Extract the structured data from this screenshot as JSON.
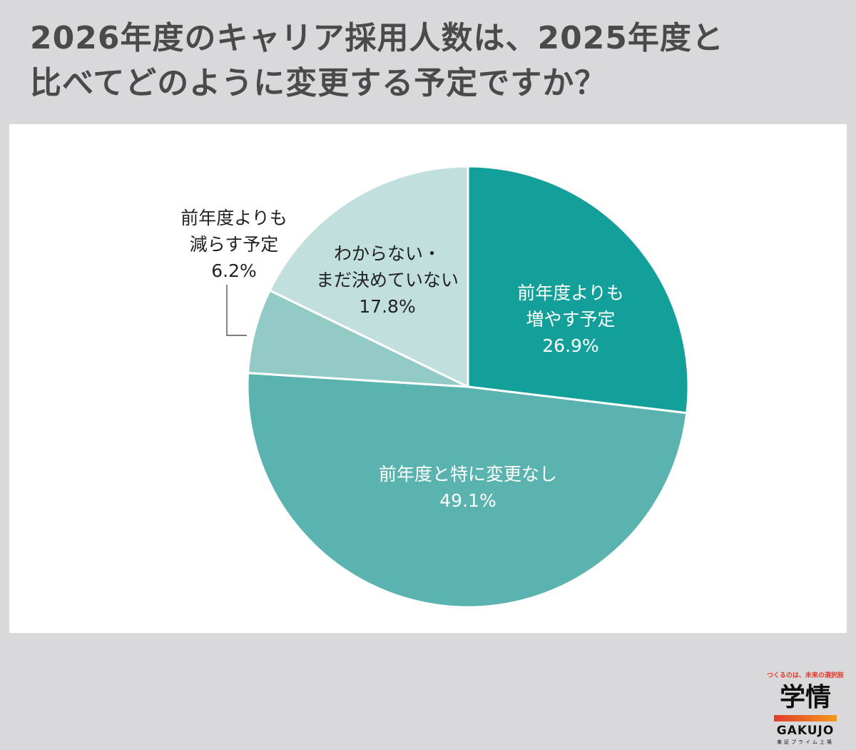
{
  "title": {
    "line1": "2026年度のキャリア採用人数は、2025年度と",
    "line2": "比べてどのように変更する予定ですか？"
  },
  "chart_data": {
    "type": "pie",
    "title": "2026年度のキャリア採用人数は、2025年度と比べてどのように変更する予定ですか？",
    "slices": [
      {
        "label_lines": [
          "前年度よりも",
          "増やす予定"
        ],
        "value": 26.9,
        "value_label": "26.9%",
        "color": "#14a09a",
        "text_color": "#ffffff"
      },
      {
        "label_lines": [
          "前年度と特に変更なし"
        ],
        "value": 49.1,
        "value_label": "49.1%",
        "color": "#5bb3b0",
        "text_color": "#ffffff"
      },
      {
        "label_lines": [
          "前年度よりも",
          "減らす予定"
        ],
        "value": 6.2,
        "value_label": "6.2%",
        "color": "#92cbc6",
        "text_color": "#222222"
      },
      {
        "label_lines": [
          "わからない・",
          "まだ決めていない"
        ],
        "value": 17.8,
        "value_label": "17.8%",
        "color": "#c1dfdc",
        "text_color": "#222222"
      }
    ],
    "start_angle": "12 o'clock",
    "direction": "clockwise"
  },
  "logo": {
    "tagline": "つくるのは、未来の選択肢",
    "kanji": "学情",
    "latin": "GAKUJO",
    "sub": "東証プライム上場",
    "bar_colors": [
      "#e23b2b",
      "#f39a1c"
    ]
  }
}
